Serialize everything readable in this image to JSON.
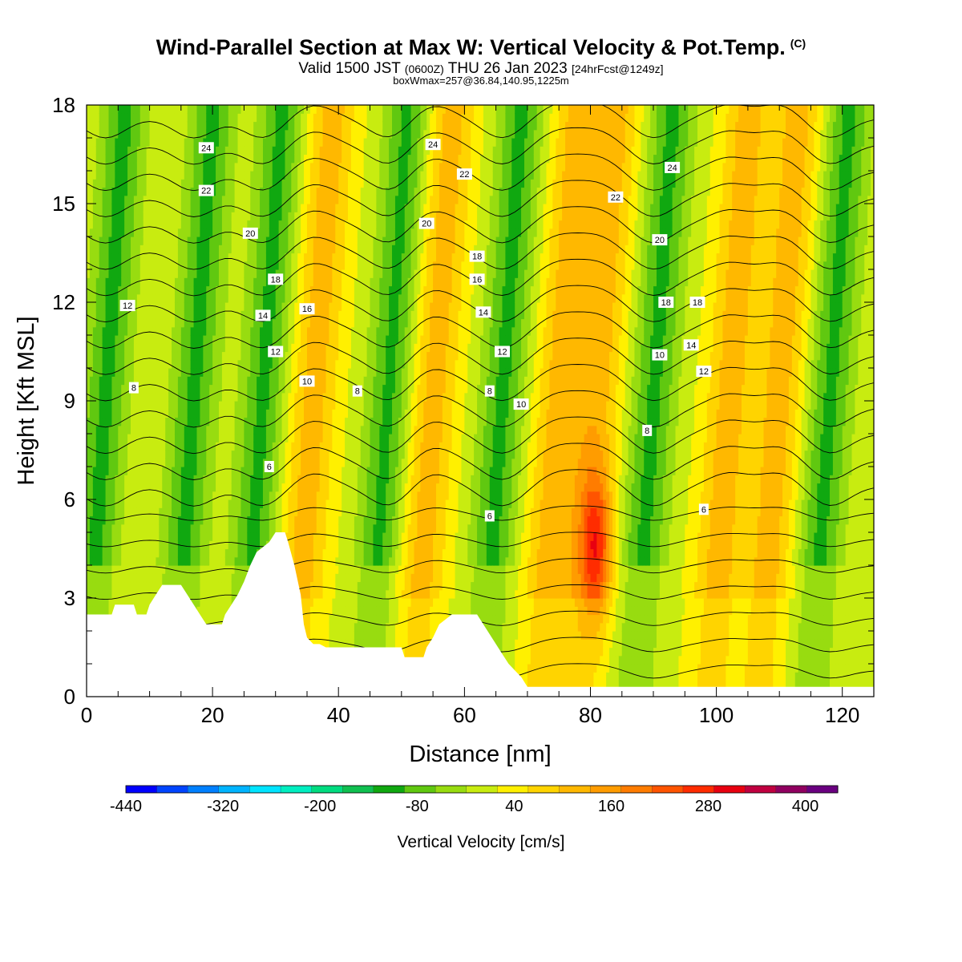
{
  "header": {
    "title": "Wind-Parallel Section at Max W: Vertical Velocity & Pot.Temp.",
    "copyright": "(C)",
    "valid_prefix": "Valid 1500 JST",
    "valid_utc": "(0600Z)",
    "valid_date": "THU 26 Jan 2023",
    "forecast": "[24hrFcst@1249z]",
    "box_info": "boxWmax=257@36.84,140.95,1225m"
  },
  "chart_data": {
    "type": "heatmap",
    "xlabel": "Distance [nm]",
    "ylabel": "Height [Kft MSL]",
    "xlim": [
      0,
      125
    ],
    "ylim": [
      0,
      18
    ],
    "x_ticks": [
      0,
      20,
      40,
      60,
      80,
      100,
      120
    ],
    "y_ticks": [
      0,
      3,
      6,
      9,
      12,
      15,
      18
    ],
    "colorbar": {
      "title": "Vertical Velocity [cm/s]",
      "min": -440,
      "max": 440,
      "step": 40,
      "tick_values": [
        -440,
        -320,
        -200,
        -80,
        40,
        160,
        280,
        400
      ],
      "colors": [
        "#0000ff",
        "#0044ff",
        "#0080ff",
        "#00b4ff",
        "#00e4ff",
        "#00eec0",
        "#00dc80",
        "#10c050",
        "#10a810",
        "#60c810",
        "#98dc10",
        "#c8ec10",
        "#fff000",
        "#ffd400",
        "#ffb800",
        "#ff9c00",
        "#ff7c00",
        "#ff5400",
        "#ff2c00",
        "#e80010",
        "#c00040",
        "#900060",
        "#6a0080"
      ]
    },
    "updraft_columns_nm": [
      36,
      55,
      75,
      81,
      102,
      110
    ],
    "downdraft_columns_nm": [
      3,
      17,
      28,
      48,
      66,
      90,
      118
    ],
    "max_updraft": {
      "x": 81,
      "y": 4.5,
      "value": 257
    },
    "terrain": [
      {
        "x": 0,
        "y": 2.5
      },
      {
        "x": 4,
        "y": 2.5
      },
      {
        "x": 4.5,
        "y": 2.8
      },
      {
        "x": 7.5,
        "y": 2.8
      },
      {
        "x": 8,
        "y": 2.5
      },
      {
        "x": 9.5,
        "y": 2.5
      },
      {
        "x": 10,
        "y": 2.8
      },
      {
        "x": 11,
        "y": 3.1
      },
      {
        "x": 12,
        "y": 3.4
      },
      {
        "x": 15,
        "y": 3.4
      },
      {
        "x": 16,
        "y": 3.1
      },
      {
        "x": 17,
        "y": 2.8
      },
      {
        "x": 18,
        "y": 2.5
      },
      {
        "x": 19,
        "y": 2.2
      },
      {
        "x": 21.5,
        "y": 2.2
      },
      {
        "x": 22,
        "y": 2.5
      },
      {
        "x": 23,
        "y": 2.8
      },
      {
        "x": 24,
        "y": 3.1
      },
      {
        "x": 25,
        "y": 3.5
      },
      {
        "x": 26,
        "y": 4.0
      },
      {
        "x": 27,
        "y": 4.4
      },
      {
        "x": 29,
        "y": 4.7
      },
      {
        "x": 30,
        "y": 5.0
      },
      {
        "x": 31.5,
        "y": 5.0
      },
      {
        "x": 32,
        "y": 4.7
      },
      {
        "x": 33,
        "y": 4.0
      },
      {
        "x": 34,
        "y": 3.1
      },
      {
        "x": 34.5,
        "y": 2.2
      },
      {
        "x": 35,
        "y": 1.8
      },
      {
        "x": 36,
        "y": 1.6
      },
      {
        "x": 37,
        "y": 1.6
      },
      {
        "x": 38,
        "y": 1.5
      },
      {
        "x": 50,
        "y": 1.5
      },
      {
        "x": 50.5,
        "y": 1.2
      },
      {
        "x": 53.5,
        "y": 1.2
      },
      {
        "x": 54,
        "y": 1.5
      },
      {
        "x": 55,
        "y": 1.8
      },
      {
        "x": 56,
        "y": 2.2
      },
      {
        "x": 58,
        "y": 2.5
      },
      {
        "x": 62,
        "y": 2.5
      },
      {
        "x": 63,
        "y": 2.2
      },
      {
        "x": 64,
        "y": 1.9
      },
      {
        "x": 65,
        "y": 1.6
      },
      {
        "x": 66,
        "y": 1.3
      },
      {
        "x": 67,
        "y": 1.0
      },
      {
        "x": 68,
        "y": 0.8
      },
      {
        "x": 69,
        "y": 0.6
      },
      {
        "x": 70,
        "y": 0.3
      },
      {
        "x": 125,
        "y": 0.3
      }
    ],
    "theta_contour_labels": [
      {
        "text": "24",
        "x": 19,
        "y": 16.7
      },
      {
        "text": "22",
        "x": 19,
        "y": 15.4
      },
      {
        "text": "20",
        "x": 26,
        "y": 14.1
      },
      {
        "text": "18",
        "x": 30,
        "y": 12.7
      },
      {
        "text": "12",
        "x": 6.5,
        "y": 11.9
      },
      {
        "text": "14",
        "x": 28,
        "y": 11.6
      },
      {
        "text": "12",
        "x": 30,
        "y": 10.5
      },
      {
        "text": "16",
        "x": 35,
        "y": 11.8
      },
      {
        "text": "10",
        "x": 35,
        "y": 9.6
      },
      {
        "text": "8",
        "x": 7.5,
        "y": 9.4
      },
      {
        "text": "8",
        "x": 43,
        "y": 9.3
      },
      {
        "text": "6",
        "x": 29,
        "y": 7.0
      },
      {
        "text": "24",
        "x": 55,
        "y": 16.8
      },
      {
        "text": "22",
        "x": 60,
        "y": 15.9
      },
      {
        "text": "20",
        "x": 54,
        "y": 14.4
      },
      {
        "text": "18",
        "x": 62,
        "y": 13.4
      },
      {
        "text": "16",
        "x": 62,
        "y": 12.7
      },
      {
        "text": "14",
        "x": 63,
        "y": 11.7
      },
      {
        "text": "12",
        "x": 66,
        "y": 10.5
      },
      {
        "text": "8",
        "x": 64,
        "y": 9.3
      },
      {
        "text": "10",
        "x": 69,
        "y": 8.9
      },
      {
        "text": "6",
        "x": 64,
        "y": 5.5
      },
      {
        "text": "24",
        "x": 93,
        "y": 16.1
      },
      {
        "text": "22",
        "x": 84,
        "y": 15.2
      },
      {
        "text": "20",
        "x": 91,
        "y": 13.9
      },
      {
        "text": "18",
        "x": 92,
        "y": 12.0
      },
      {
        "text": "18",
        "x": 97,
        "y": 12.0
      },
      {
        "text": "14",
        "x": 96,
        "y": 10.7
      },
      {
        "text": "10",
        "x": 91,
        "y": 10.4
      },
      {
        "text": "12",
        "x": 98,
        "y": 9.9
      },
      {
        "text": "8",
        "x": 89,
        "y": 8.1
      },
      {
        "text": "6",
        "x": 98,
        "y": 5.7
      }
    ]
  }
}
